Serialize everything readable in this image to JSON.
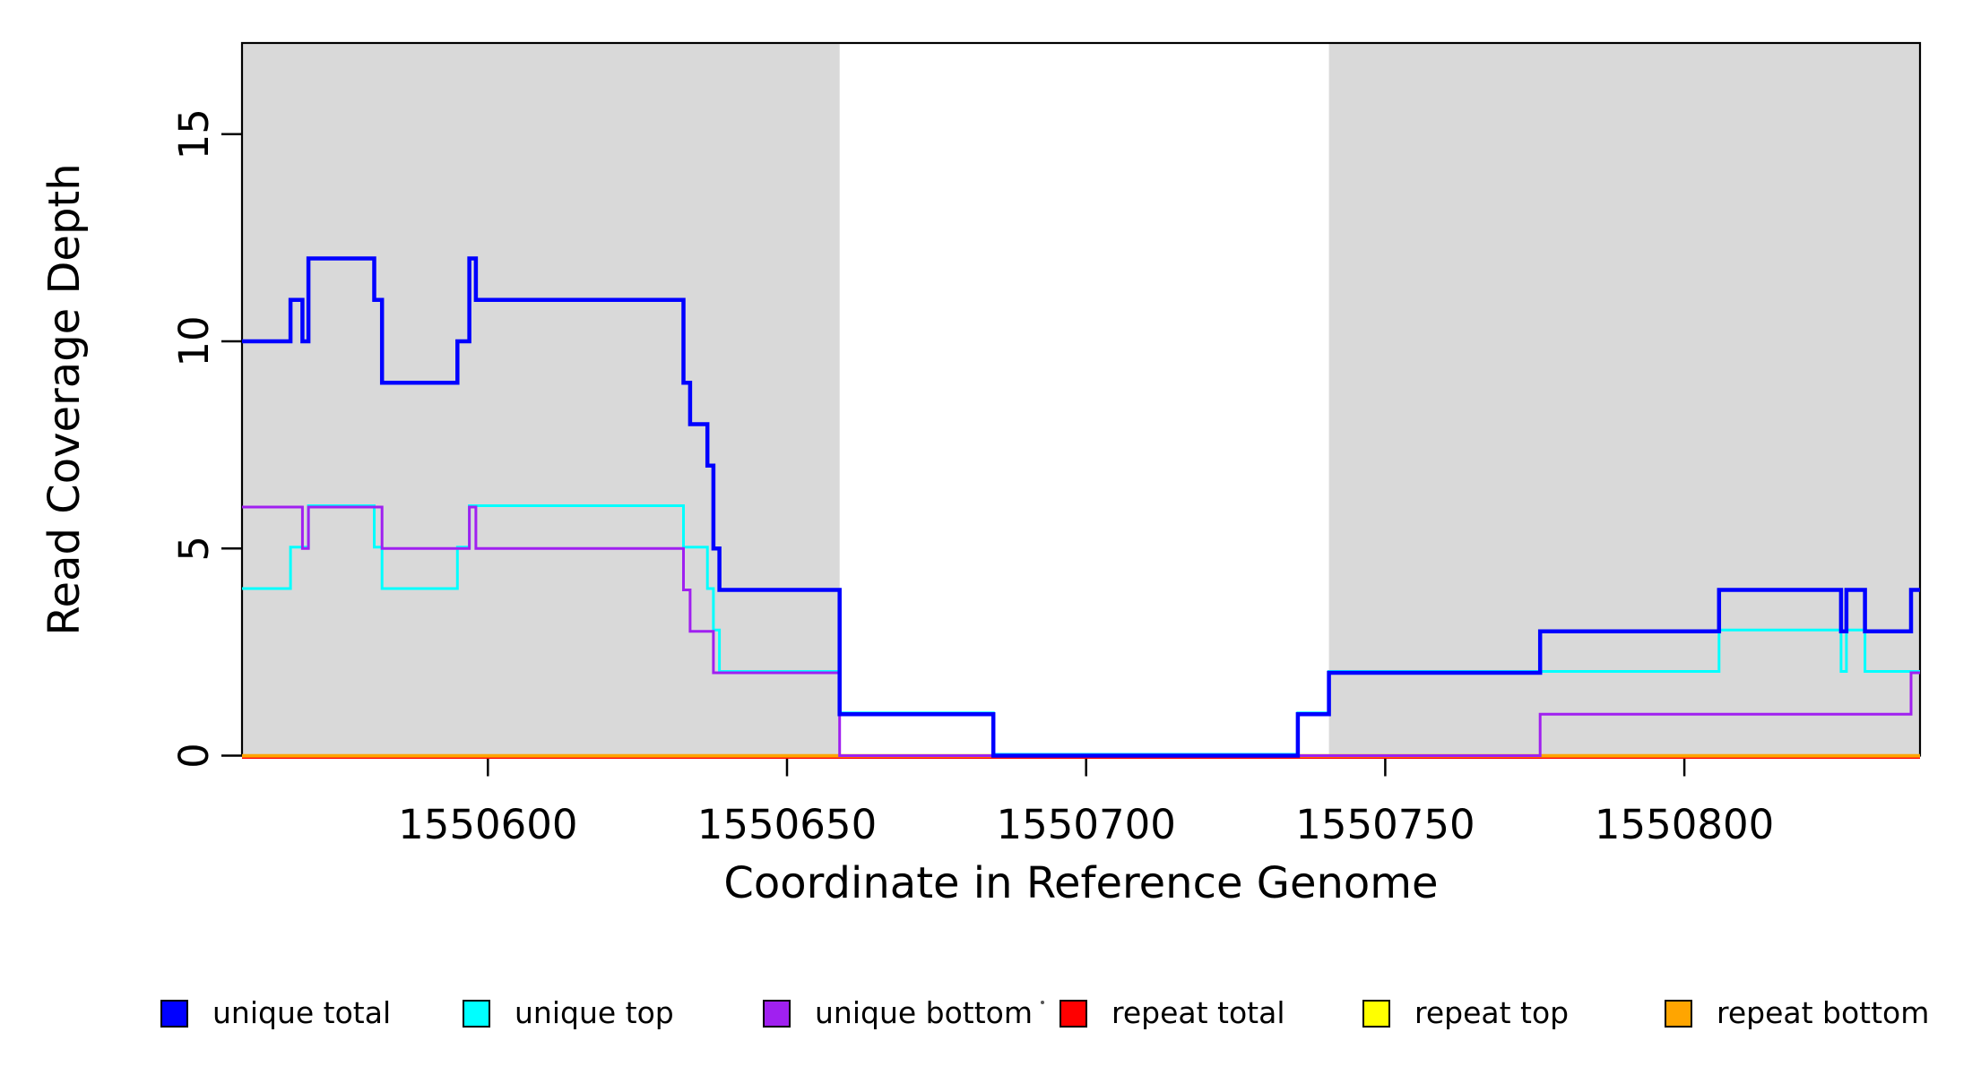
{
  "figure": {
    "background": "#FFFFFF",
    "border_color": "#000000",
    "text_color": "#000000"
  },
  "chart_data": {
    "type": "line",
    "subtype": "step-coverage",
    "title": "",
    "xlabel": "Coordinate in Reference Genome",
    "ylabel": "Read Coverage Depth",
    "xlim": [
      1550558.9,
      1550839.4
    ],
    "ylim": [
      0,
      17.2
    ],
    "x_ticks": [
      1550600,
      1550650,
      1550700,
      1550750,
      1550800
    ],
    "x_tick_labels": [
      "1550600",
      "1550650",
      "1550700",
      "1550750",
      "1550800"
    ],
    "y_ticks": [
      0,
      5,
      10,
      15
    ],
    "y_tick_labels": [
      "0",
      "5",
      "10",
      "15"
    ],
    "grid": false,
    "legend_position": "bottom",
    "highlight_color": "#D9D9D9",
    "highlight_regions": [
      [
        1550558.9,
        1550658.8
      ],
      [
        1550740.6,
        1550839.4
      ]
    ],
    "draw_order": [
      "repeat total",
      "repeat top",
      "repeat bottom",
      "unique top",
      "unique bottom",
      "unique total"
    ],
    "series": [
      {
        "name": "unique total",
        "color": "#0000FF",
        "line_width": 4.5,
        "dy": 0,
        "steps": [
          [
            1550558.9,
            10
          ],
          [
            1550567,
            11
          ],
          [
            1550569,
            10
          ],
          [
            1550570,
            12
          ],
          [
            1550581,
            11
          ],
          [
            1550582.3,
            9
          ],
          [
            1550594.9,
            10
          ],
          [
            1550596.9,
            12
          ],
          [
            1550598,
            11
          ],
          [
            1550632.7,
            9
          ],
          [
            1550633.8,
            8
          ],
          [
            1550636.7,
            7
          ],
          [
            1550637.7,
            5
          ],
          [
            1550638.7,
            4
          ],
          [
            1550658.8,
            1
          ],
          [
            1550684.5,
            0
          ],
          [
            1550735.4,
            1
          ],
          [
            1550740.6,
            2
          ],
          [
            1550775.9,
            3
          ],
          [
            1550805.8,
            4
          ],
          [
            1550826.2,
            3
          ],
          [
            1550827.1,
            4
          ],
          [
            1550830.2,
            3
          ],
          [
            1550837.9,
            4
          ]
        ]
      },
      {
        "name": "unique top",
        "color": "#00FFFF",
        "line_width": 3,
        "dy": -1.5,
        "steps": [
          [
            1550558.9,
            4
          ],
          [
            1550567,
            5
          ],
          [
            1550570,
            6
          ],
          [
            1550581,
            5
          ],
          [
            1550582.3,
            4
          ],
          [
            1550594.9,
            5
          ],
          [
            1550596.9,
            6
          ],
          [
            1550632.7,
            5
          ],
          [
            1550636.7,
            4
          ],
          [
            1550637.7,
            3
          ],
          [
            1550638.7,
            2
          ],
          [
            1550658.8,
            1
          ],
          [
            1550684.5,
            0
          ],
          [
            1550735.4,
            1
          ],
          [
            1550740.6,
            2
          ],
          [
            1550805.8,
            3
          ],
          [
            1550826.2,
            2
          ],
          [
            1550827.1,
            3
          ],
          [
            1550830.2,
            2
          ]
        ]
      },
      {
        "name": "unique bottom",
        "color": "#A020F0",
        "line_width": 3,
        "dy": 0,
        "steps": [
          [
            1550558.9,
            6
          ],
          [
            1550569,
            5
          ],
          [
            1550570,
            6
          ],
          [
            1550582.3,
            5
          ],
          [
            1550596.9,
            6
          ],
          [
            1550598,
            5
          ],
          [
            1550632.7,
            4
          ],
          [
            1550633.8,
            3
          ],
          [
            1550637.7,
            2
          ],
          [
            1550658.8,
            0
          ],
          [
            1550775.9,
            1
          ],
          [
            1550837.9,
            2
          ]
        ]
      },
      {
        "name": "repeat total",
        "color": "#FF0000",
        "line_width": 5,
        "dy": 1,
        "steps": [
          [
            1550558.9,
            0
          ]
        ]
      },
      {
        "name": "repeat top",
        "color": "#FFFF00",
        "line_width": 3,
        "dy": 0.5,
        "steps": [
          [
            1550558.9,
            0
          ]
        ]
      },
      {
        "name": "repeat bottom",
        "color": "#FFA500",
        "line_width": 3.5,
        "dy": 0,
        "steps": [
          [
            1550558.9,
            0
          ]
        ]
      }
    ]
  }
}
